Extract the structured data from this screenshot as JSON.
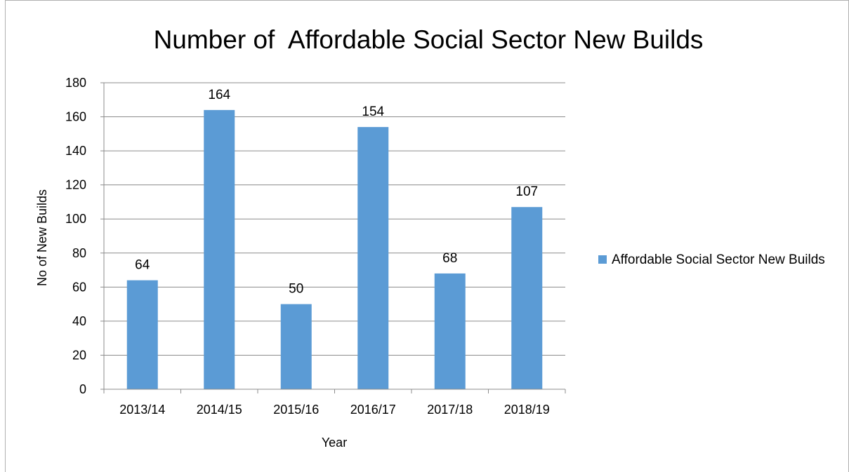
{
  "chart_data": {
    "type": "bar",
    "title": "Number of  Affordable Social Sector New Builds",
    "xlabel": "Year",
    "ylabel": "No of New Builds",
    "categories": [
      "2013/14",
      "2014/15",
      "2015/16",
      "2016/17",
      "2017/18",
      "2018/19"
    ],
    "series": [
      {
        "name": "Affordable Social Sector New Builds",
        "values": [
          64,
          164,
          50,
          154,
          68,
          107
        ],
        "color": "#5b9bd5"
      }
    ],
    "ylim": [
      0,
      180
    ],
    "yticks": [
      0,
      20,
      40,
      60,
      80,
      100,
      120,
      140,
      160,
      180
    ],
    "grid": true,
    "data_labels": true,
    "legend_position": "right"
  }
}
